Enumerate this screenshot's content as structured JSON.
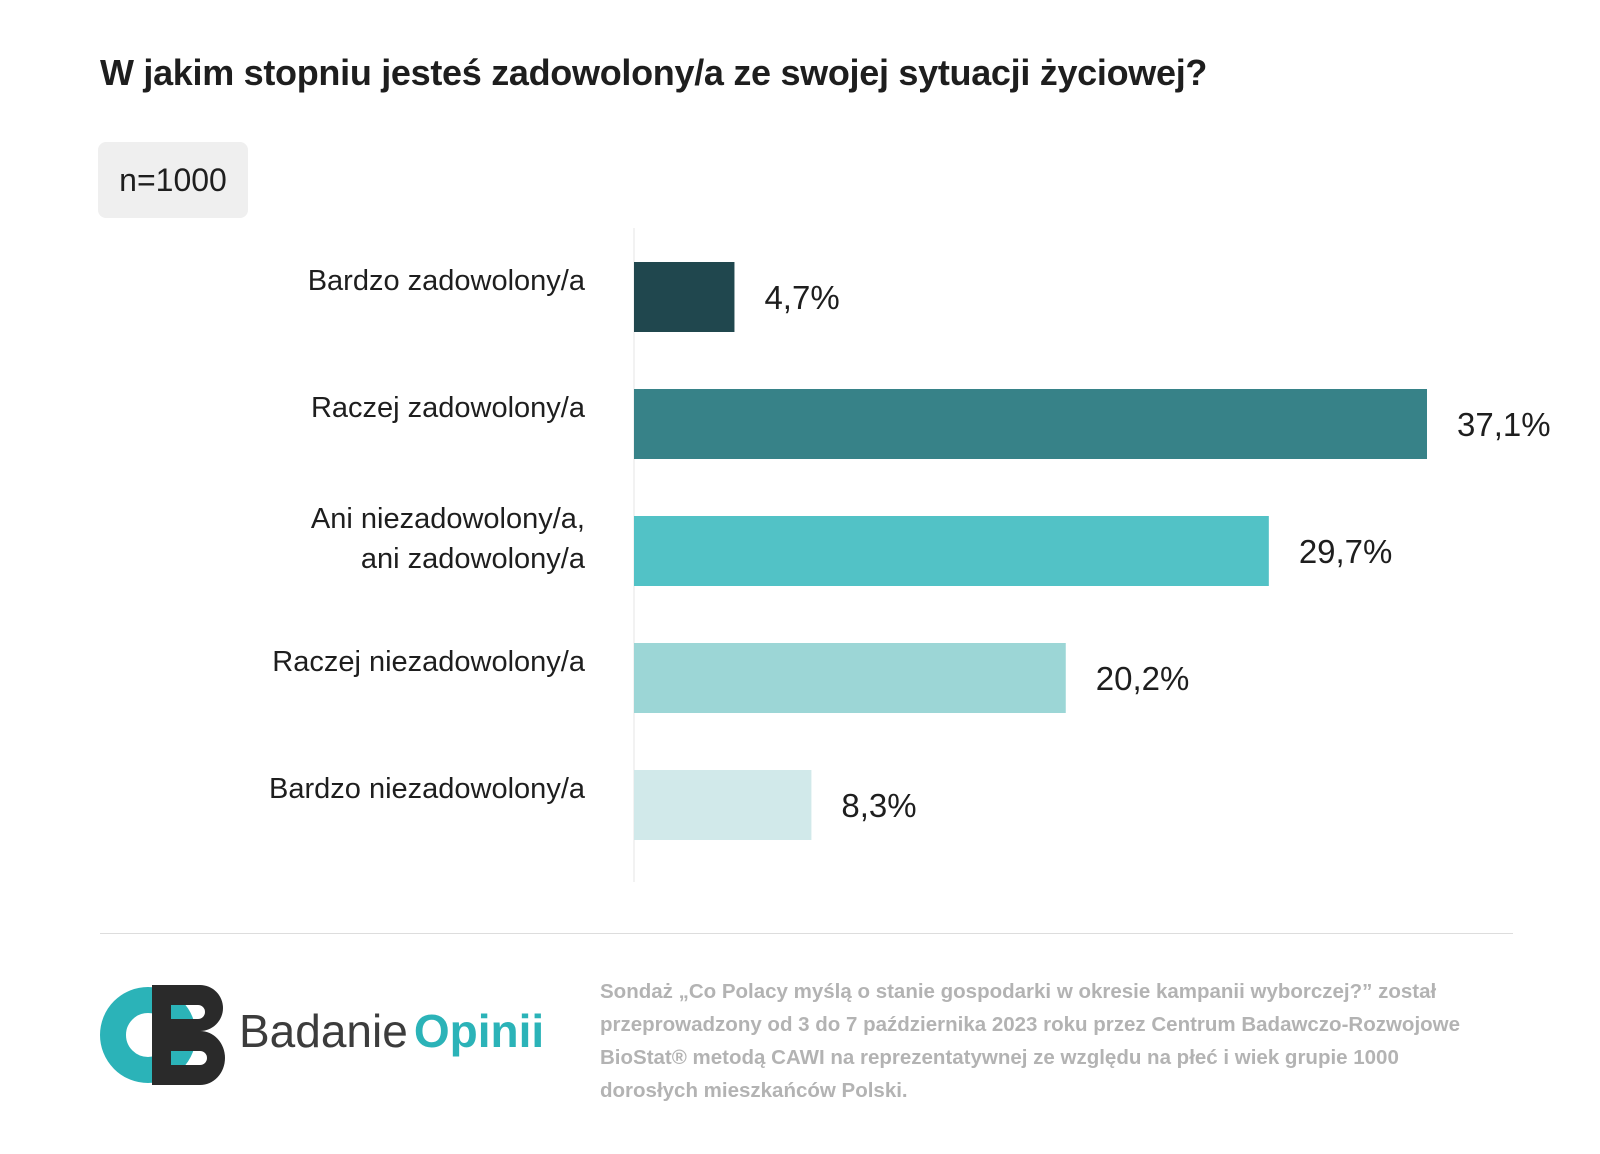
{
  "chart_data": {
    "type": "bar",
    "orientation": "horizontal",
    "title": "W jakim stopniu jesteś zadowolony/a ze swojej sytuacji życiowej?",
    "sample_size_label": "n=1000",
    "categories": [
      [
        "Bardzo zadowolony/a"
      ],
      [
        "Raczej zadowolony/a"
      ],
      [
        "Ani niezadowolony/a,",
        "ani zadowolony/a"
      ],
      [
        "Raczej niezadowolony/a"
      ],
      [
        "Bardzo niezadowolony/a"
      ]
    ],
    "values": [
      4.7,
      37.1,
      29.7,
      20.2,
      8.3
    ],
    "value_labels": [
      "4,7%",
      "37,1%",
      "29,7%",
      "20,2%",
      "8,3%"
    ],
    "colors": [
      "#20474e",
      "#378288",
      "#52c2c6",
      "#9cd6d6",
      "#d1e9ea"
    ],
    "xlim": [
      0,
      37.1
    ],
    "grid": false,
    "legend": "none"
  },
  "footer": {
    "brand_part1": "Badanie",
    "brand_part2": "Opinii",
    "note": "Sondaż „Co Polacy myślą o stanie gospodarki w okresie kampanii wyborczej?” został przeprowadzony od 3 do 7 października 2023 roku przez Centrum Badawczo-Rozwojowe BioStat® metodą CAWI na reprezentatywnej ze względu na płeć i wiek grupie 1000 dorosłych mieszkańców Polski."
  },
  "logo_colors": {
    "teal": "#2bb3b8",
    "dark": "#2a2a2a"
  }
}
